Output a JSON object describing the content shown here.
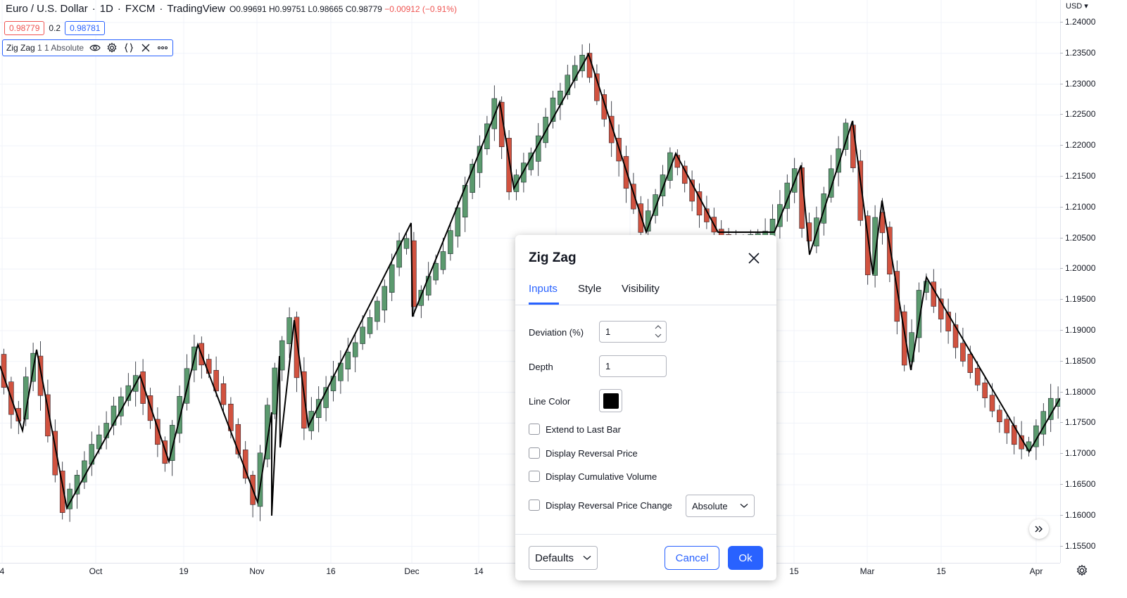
{
  "header": {
    "symbol": "Euro / U.S. Dollar",
    "interval": "1D",
    "exchange": "FXCM",
    "source": "TradingView",
    "open": "O0.99691",
    "high": "H0.99751",
    "low": "L0.98665",
    "close": "C0.98779",
    "change": "−0.00912 (−0.91%)"
  },
  "quote": {
    "sell": "0.98779",
    "spread": "0.2",
    "buy": "0.98781"
  },
  "indicator": {
    "name": "Zig Zag",
    "params": "1 1 Absolute"
  },
  "price_axis": {
    "currency": "USD",
    "ticks": [
      "1.24000",
      "1.23500",
      "1.23000",
      "1.22500",
      "1.22000",
      "1.21500",
      "1.21000",
      "1.20500",
      "1.20000",
      "1.19500",
      "1.19000",
      "1.18500",
      "1.18000",
      "1.17500",
      "1.17000",
      "1.16500",
      "1.16000",
      "1.15500"
    ]
  },
  "time_axis": {
    "ticks": [
      "4",
      "Oct",
      "19",
      "Nov",
      "16",
      "Dec",
      "14",
      "15",
      "Mar",
      "15",
      "Apr"
    ]
  },
  "colors": {
    "up": "#5b9a6e",
    "down": "#d1523f",
    "zigzag": "#000000",
    "accent": "#2962ff"
  },
  "dialog": {
    "title": "Zig Zag",
    "tabs": [
      "Inputs",
      "Style",
      "Visibility"
    ],
    "active_tab": "Inputs",
    "deviation_label": "Deviation (%)",
    "deviation_value": "1",
    "depth_label": "Depth",
    "depth_value": "1",
    "line_color_label": "Line Color",
    "checkboxes": [
      "Extend to Last Bar",
      "Display Reversal Price",
      "Display Cumulative Volume",
      "Display Reversal Price Change"
    ],
    "price_change_mode": "Absolute",
    "defaults_label": "Defaults",
    "cancel_label": "Cancel",
    "ok_label": "Ok"
  }
}
